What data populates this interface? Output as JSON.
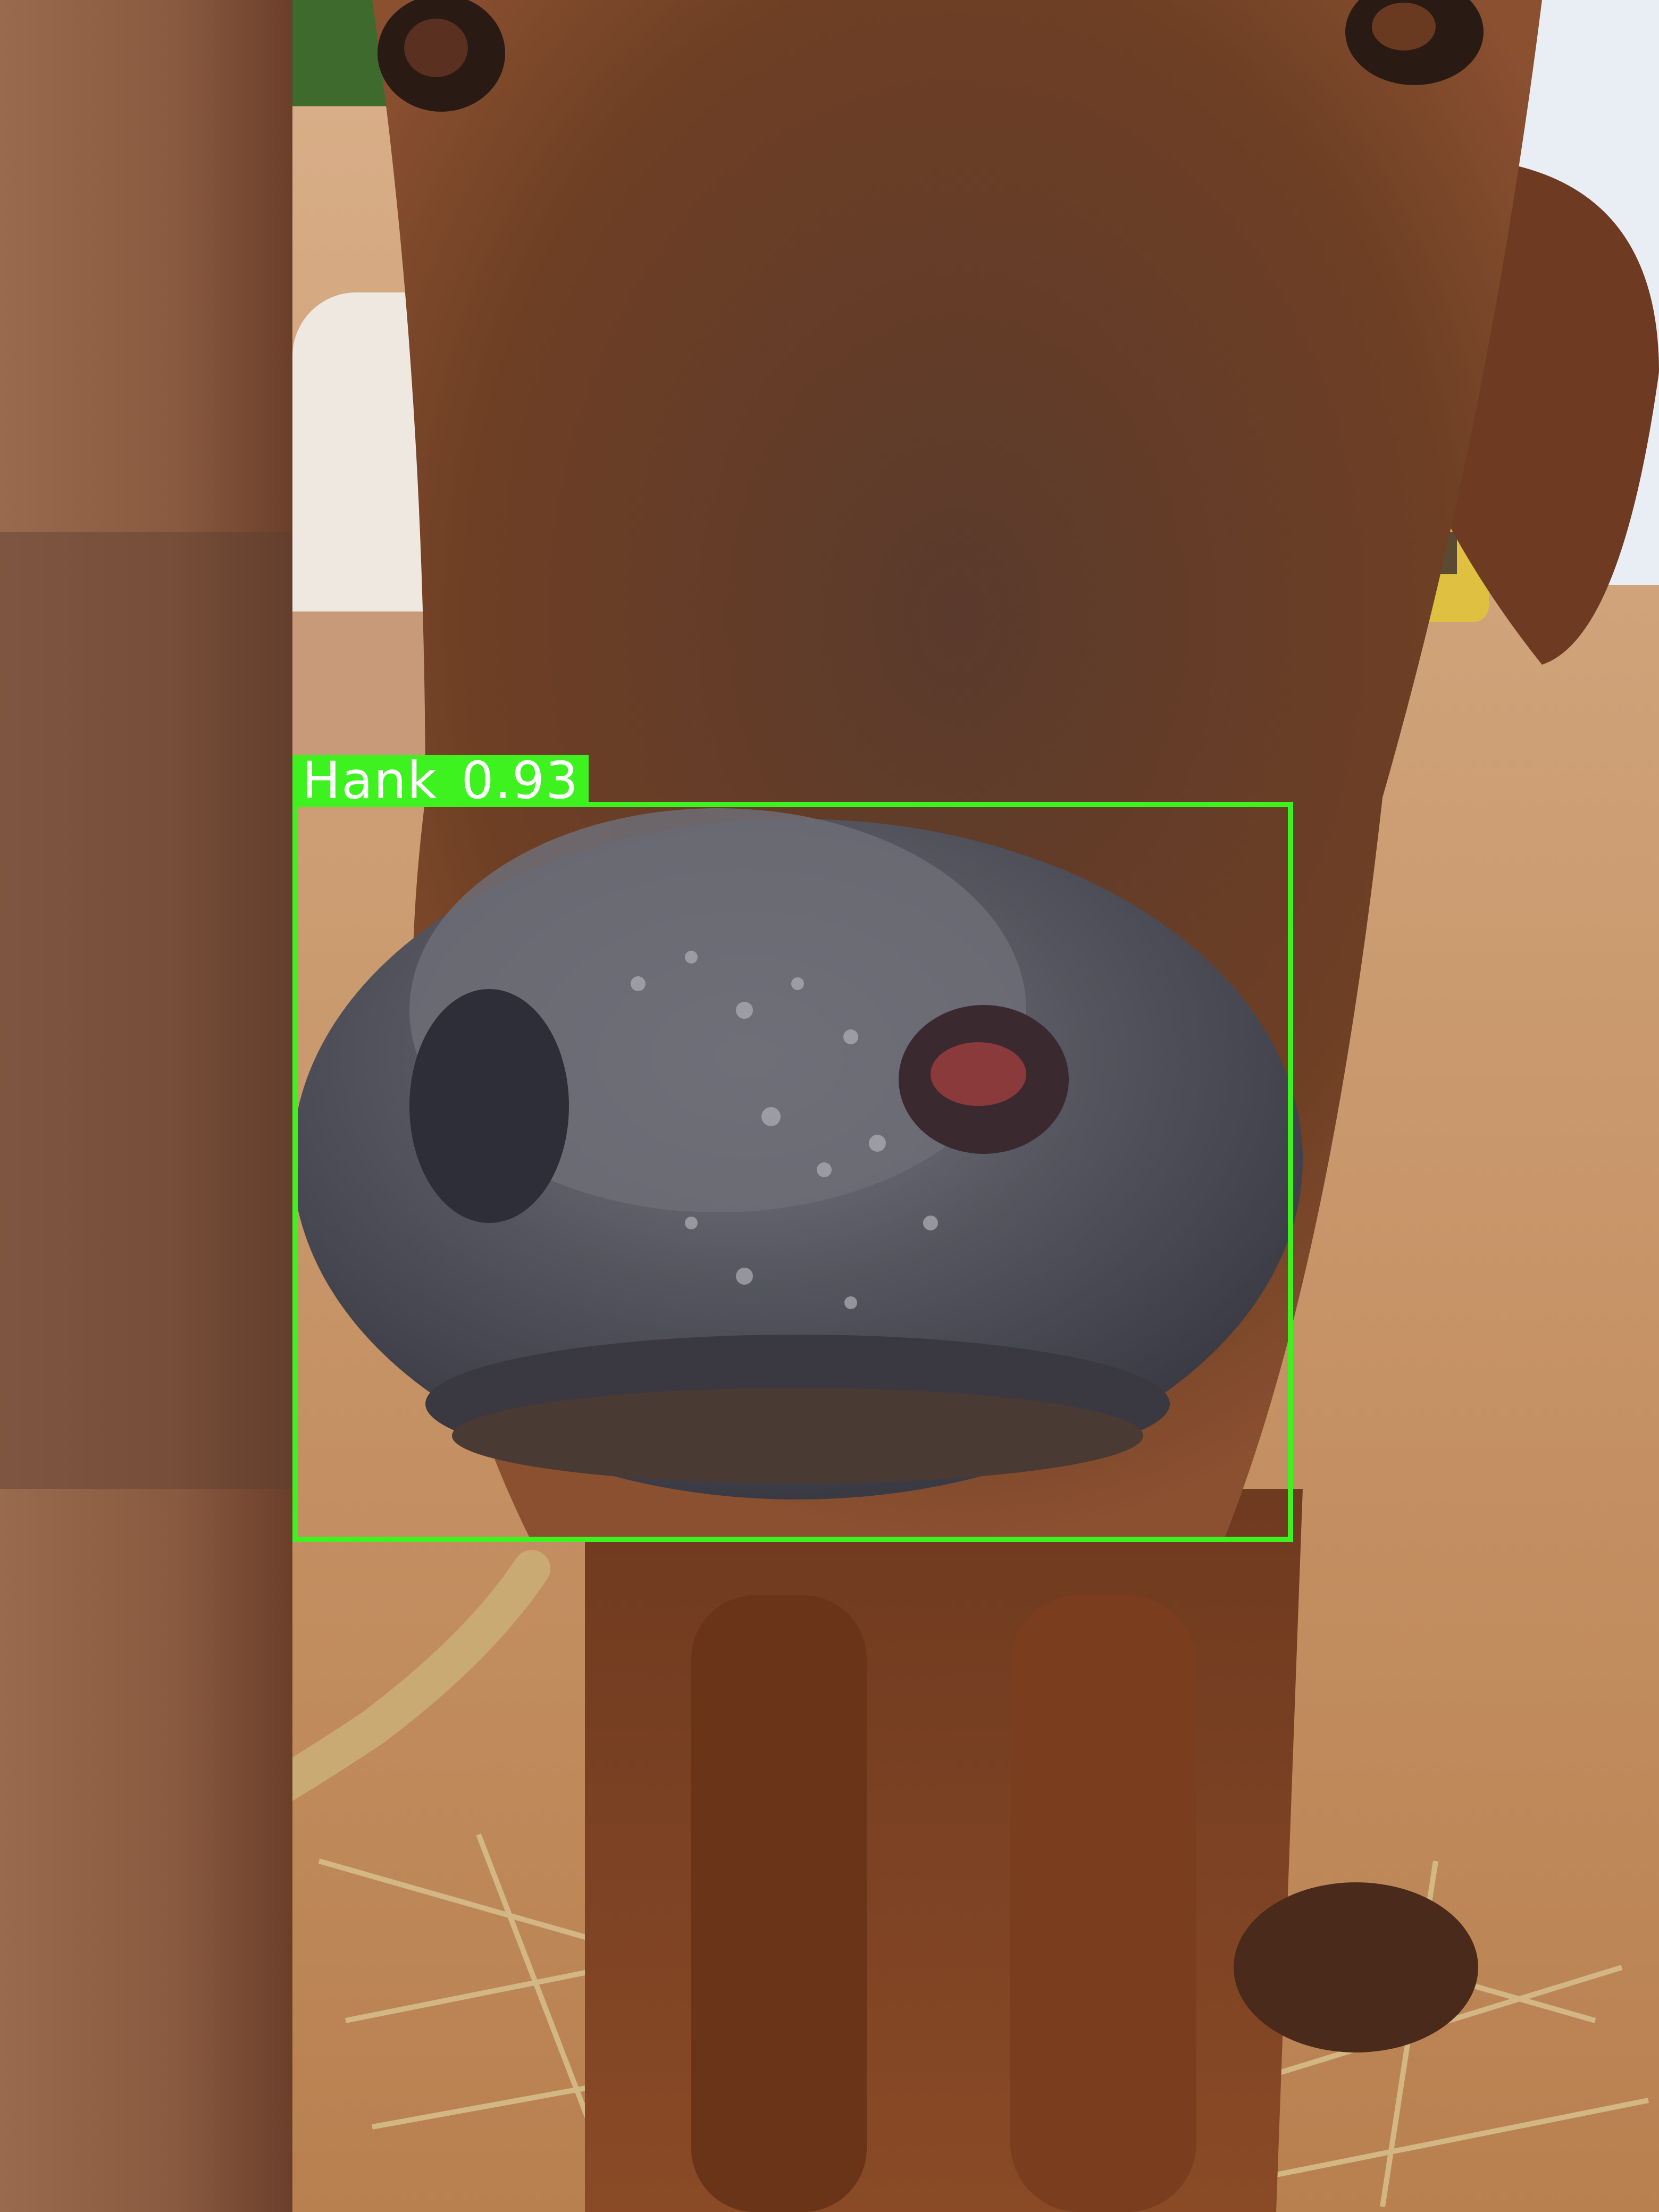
{
  "detection": {
    "label": "Hank",
    "confidence": "0.93",
    "box_color": "#3ef220",
    "text_color": "#ffffff"
  },
  "scene": {
    "subject": "buffalo-calf",
    "palette": {
      "fur": "#7a4526",
      "nose": "#4e4f5a",
      "pillar": "#8a5a40",
      "ground": "#c9956a",
      "sky": "#e8eef4"
    }
  }
}
